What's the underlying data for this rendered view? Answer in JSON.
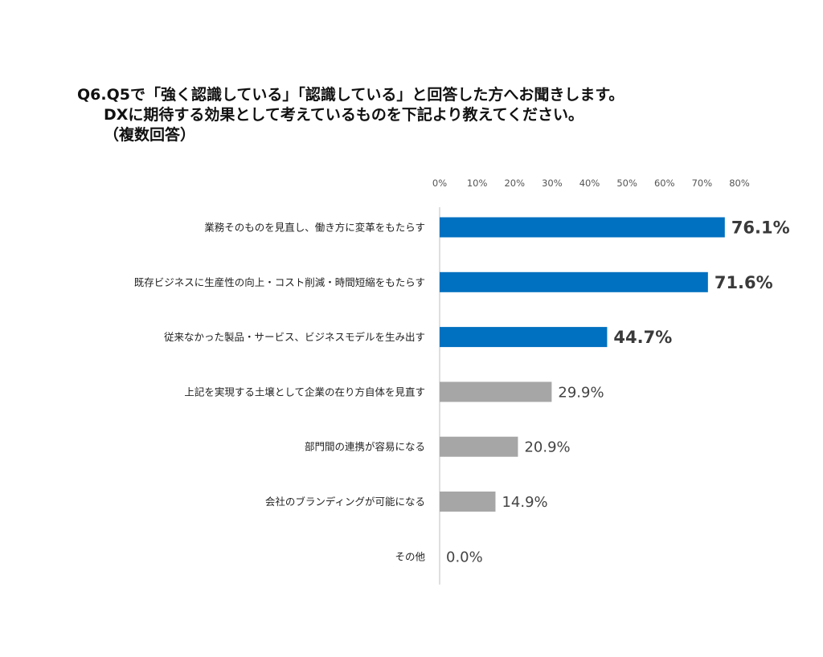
{
  "title": {
    "line1": "Q6.Q5で「強く認識している」「認識している」と回答した方へお聞きします。",
    "line2": "DXに期待する効果として考えているものを下記より教えてください。",
    "line3": "（複数回答）"
  },
  "chart_data": {
    "type": "bar",
    "orientation": "horizontal",
    "categories": [
      "業務そのものを見直し、働き方に変革をもたらす",
      "既存ビジネスに生産性の向上・コスト削減・時間短縮をもたらす",
      "従来なかった製品・サービス、ビジネスモデルを生み出す",
      "上記を実現する土壌として企業の在り方自体を見直す",
      "部門間の連携が容易になる",
      "会社のブランディングが可能になる",
      "その他"
    ],
    "values": [
      76.1,
      71.6,
      44.7,
      29.9,
      20.9,
      14.9,
      0.0
    ],
    "value_labels": [
      "76.1%",
      "71.6%",
      "44.7%",
      "29.9%",
      "20.9%",
      "14.9%",
      "0.0%"
    ],
    "highlighted": [
      true,
      true,
      true,
      false,
      false,
      false,
      false
    ],
    "xlim": [
      0,
      80
    ],
    "xticks": [
      "0%",
      "10%",
      "20%",
      "30%",
      "40%",
      "50%",
      "60%",
      "70%",
      "80%"
    ],
    "xaxis_position": "top",
    "grid": false,
    "colors": {
      "highlight": "#0070c0",
      "normal": "#a6a6a6",
      "axis": "#bfbfbf"
    }
  }
}
